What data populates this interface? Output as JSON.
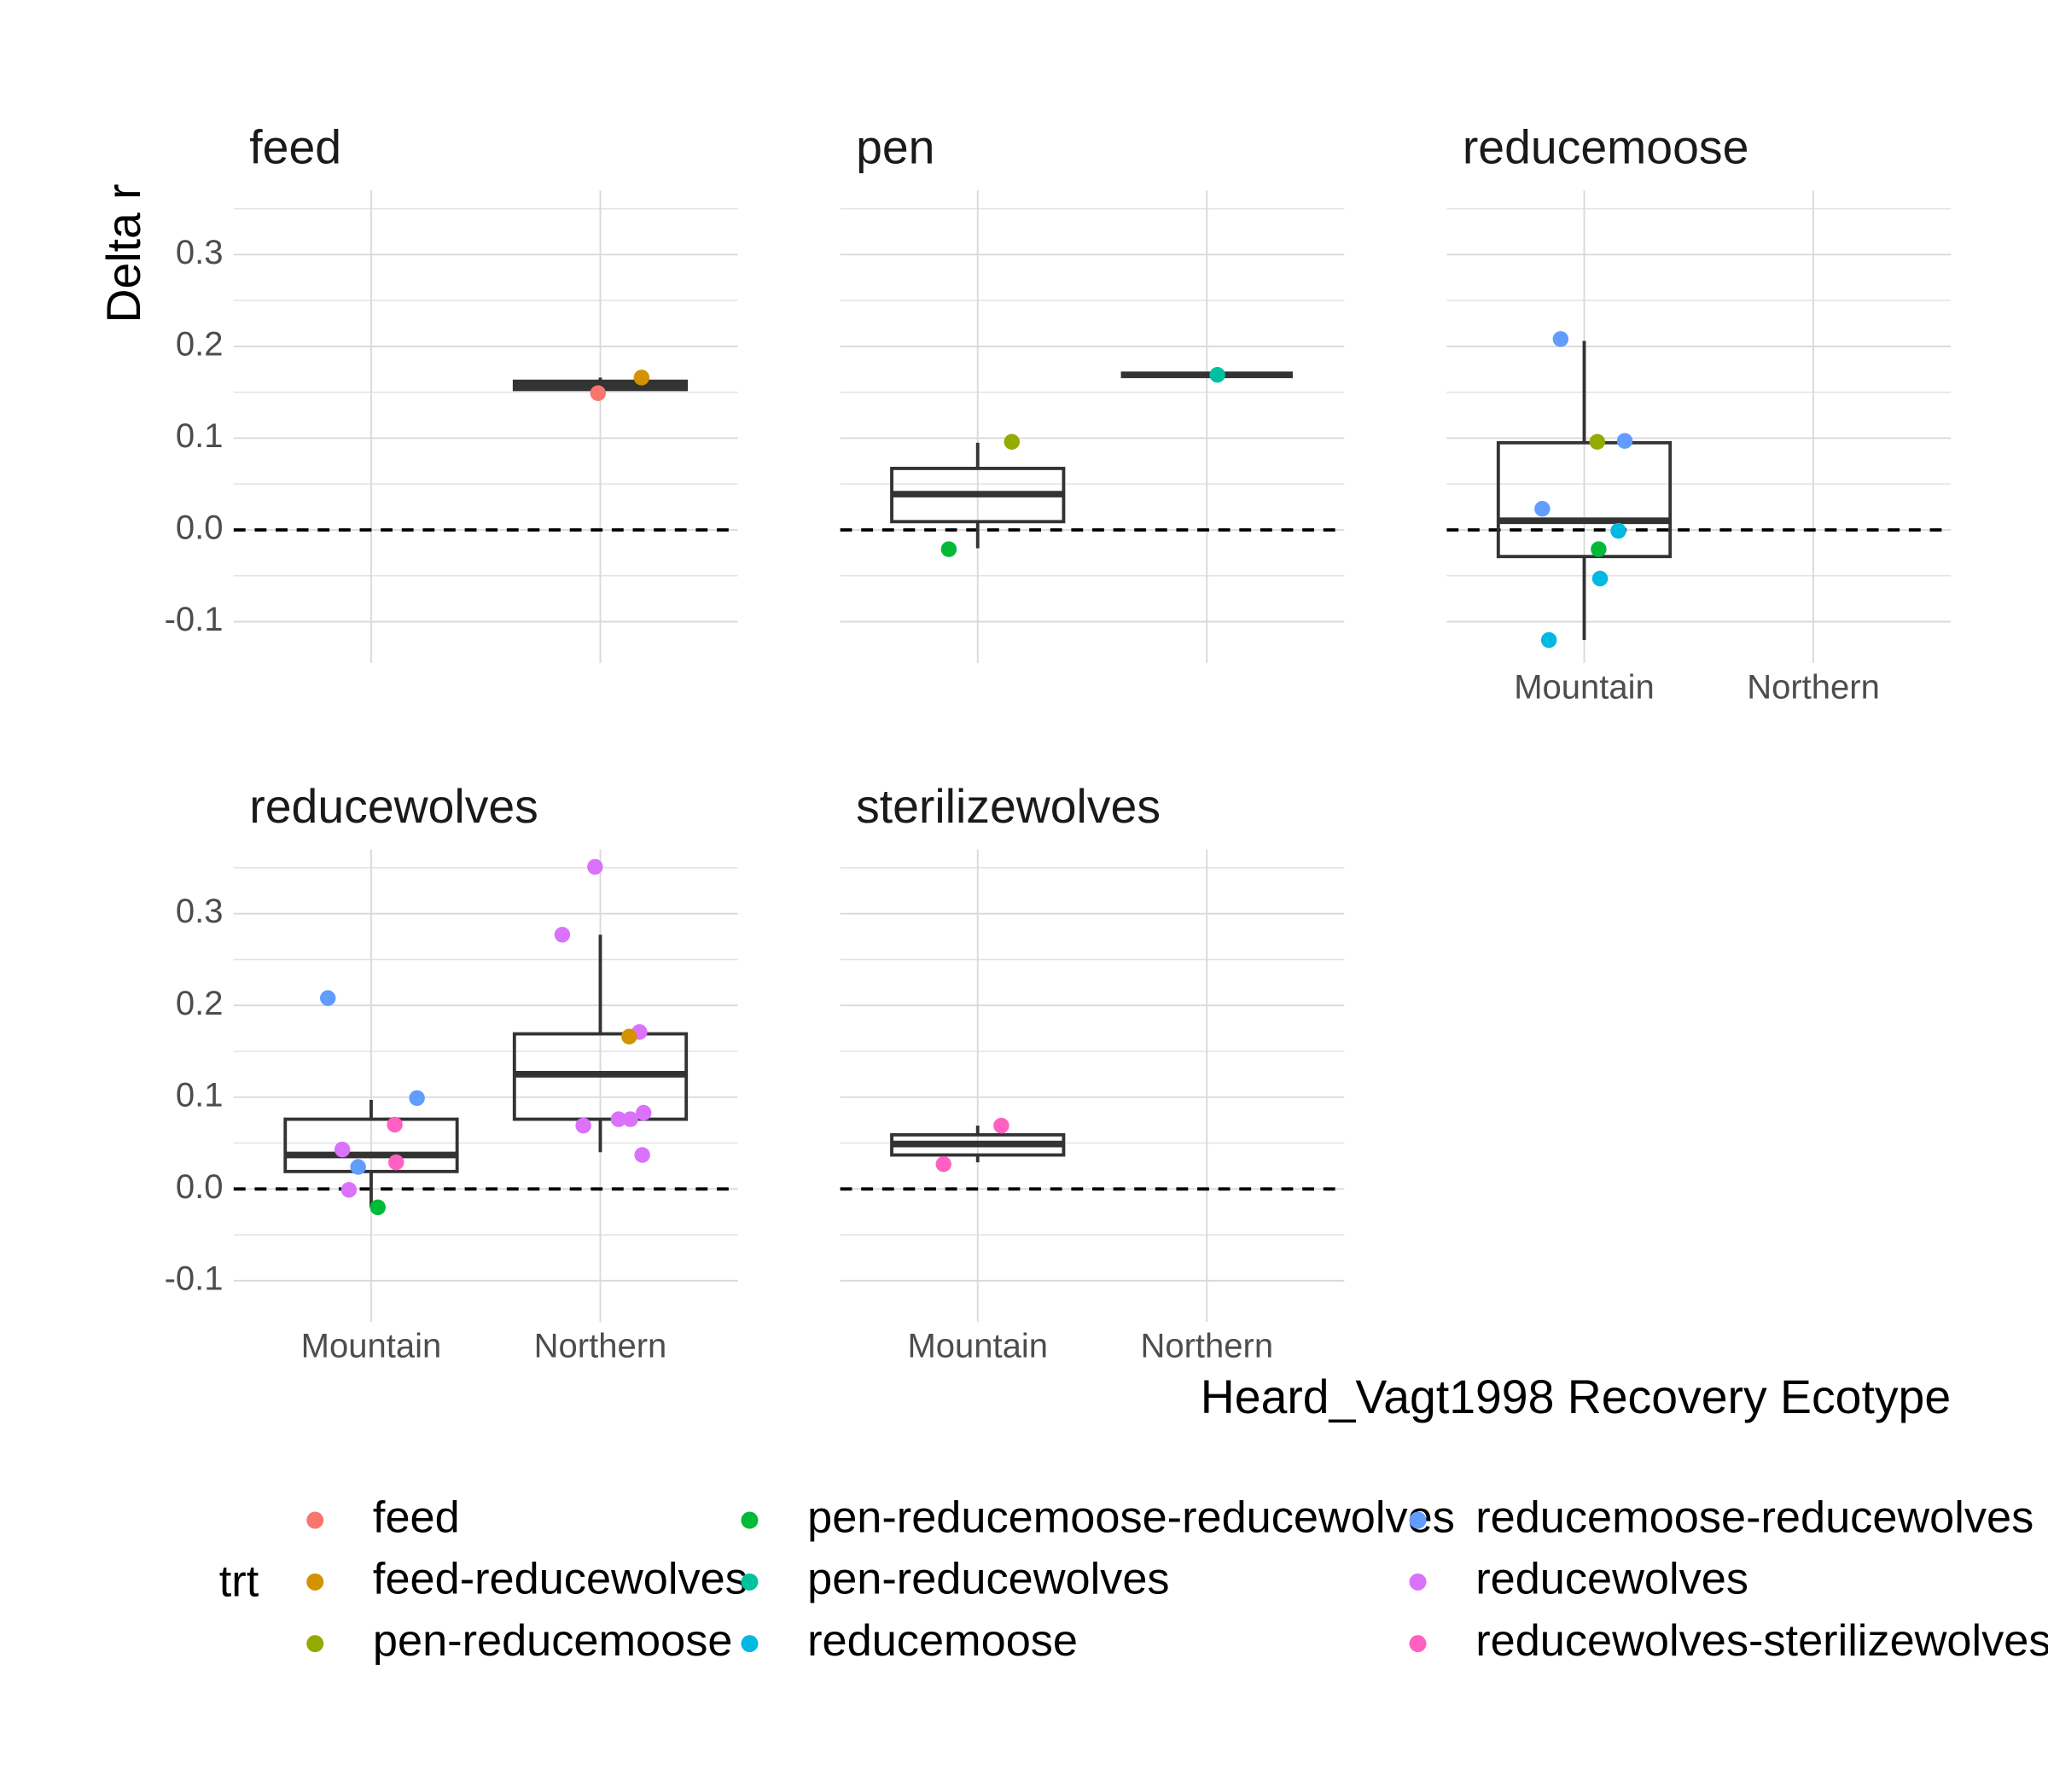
{
  "chart_data": {
    "type": "box",
    "y_label": "Delta r",
    "x_label": "Heard_Vagt1998 Recovery Ecotype",
    "categories": [
      "Mountain",
      "Northern"
    ],
    "xlim": [
      0.4,
      2.6
    ],
    "ylim": [
      -0.145,
      0.37
    ],
    "yticks": [
      -0.1,
      {
        "value": 0,
        "label": "0.0"
      },
      0.1,
      0.2,
      0.3
    ],
    "grid": true,
    "hline": 0,
    "legend_title": "trt",
    "legend_position": "bottom",
    "series": [
      {
        "name": "feed",
        "color": "#F8766D"
      },
      {
        "name": "feed-reducewolves",
        "color": "#D39200"
      },
      {
        "name": "pen-reducemoose",
        "color": "#93AA00"
      },
      {
        "name": "pen-reducemoose-reducewolves",
        "color": "#00BA38"
      },
      {
        "name": "pen-reducewolves",
        "color": "#00C19F"
      },
      {
        "name": "reducemoose",
        "color": "#00B9E3"
      },
      {
        "name": "reducemoose-reducewolves",
        "color": "#619CFF"
      },
      {
        "name": "reducewolves",
        "color": "#DB72FB"
      },
      {
        "name": "reducewolves-sterilizewolves",
        "color": "#FF61C3"
      }
    ],
    "facets": [
      {
        "title": "feed",
        "boxes": [
          {
            "category": "Northern",
            "lower": 0.149,
            "q1": 0.153,
            "median": 0.158,
            "q3": 0.162,
            "upper": 0.166
          }
        ],
        "points": [
          {
            "x": 1.99,
            "y": 0.149,
            "trt": "feed"
          },
          {
            "x": 2.18,
            "y": 0.166,
            "trt": "feed-reducewolves"
          }
        ]
      },
      {
        "title": "pen",
        "boxes": [
          {
            "category": "Mountain",
            "lower": -0.02,
            "q1": 0.009,
            "median": 0.039,
            "q3": 0.067,
            "upper": 0.095
          },
          {
            "category": "Northern",
            "lower": 0.169,
            "q1": 0.169,
            "median": 0.169,
            "q3": 0.169,
            "upper": 0.169
          }
        ],
        "points": [
          {
            "x": 0.874,
            "y": -0.021,
            "trt": "pen-reducemoose-reducewolves"
          },
          {
            "x": 1.149,
            "y": 0.096,
            "trt": "pen-reducemoose"
          },
          {
            "x": 2.046,
            "y": 0.169,
            "trt": "pen-reducewolves"
          }
        ]
      },
      {
        "title": "reducemoose",
        "boxes": [
          {
            "category": "Mountain",
            "lower": -0.12,
            "q1": -0.029,
            "median": 0.01,
            "q3": 0.095,
            "upper": 0.206
          }
        ],
        "points": [
          {
            "x": 0.897,
            "y": 0.208,
            "trt": "reducemoose-reducewolves"
          },
          {
            "x": 1.057,
            "y": 0.096,
            "trt": "pen-reducemoose"
          },
          {
            "x": 1.177,
            "y": 0.097,
            "trt": "reducemoose-reducewolves"
          },
          {
            "x": 0.817,
            "y": 0.023,
            "trt": "reducemoose-reducewolves"
          },
          {
            "x": 1.149,
            "y": -0.001,
            "trt": "reducemoose"
          },
          {
            "x": 1.063,
            "y": -0.021,
            "trt": "pen-reducemoose-reducewolves"
          },
          {
            "x": 1.069,
            "y": -0.053,
            "trt": "reducemoose"
          },
          {
            "x": 0.846,
            "y": -0.12,
            "trt": "reducemoose"
          }
        ]
      },
      {
        "title": "reducewolves",
        "boxes": [
          {
            "category": "Mountain",
            "lower": -0.02,
            "q1": 0.019,
            "median": 0.037,
            "q3": 0.076,
            "upper": 0.097
          },
          {
            "category": "Northern",
            "lower": 0.04,
            "q1": 0.076,
            "median": 0.125,
            "q3": 0.169,
            "upper": 0.277
          }
        ],
        "points": [
          {
            "x": 0.811,
            "y": 0.208,
            "trt": "reducemoose-reducewolves"
          },
          {
            "x": 1.2,
            "y": 0.099,
            "trt": "reducemoose-reducewolves"
          },
          {
            "x": 1.103,
            "y": 0.07,
            "trt": "reducewolves-sterilizewolves"
          },
          {
            "x": 0.874,
            "y": 0.043,
            "trt": "reducewolves"
          },
          {
            "x": 0.943,
            "y": 0.024,
            "trt": "reducemoose-reducewolves"
          },
          {
            "x": 1.109,
            "y": 0.029,
            "trt": "reducewolves-sterilizewolves"
          },
          {
            "x": 0.903,
            "y": -0.001,
            "trt": "reducewolves"
          },
          {
            "x": 1.029,
            "y": -0.02,
            "trt": "pen-reducemoose-reducewolves"
          },
          {
            "x": 1.977,
            "y": 0.351,
            "trt": "reducewolves"
          },
          {
            "x": 1.834,
            "y": 0.277,
            "trt": "reducewolves"
          },
          {
            "x": 2.171,
            "y": 0.171,
            "trt": "reducewolves"
          },
          {
            "x": 2.126,
            "y": 0.166,
            "trt": "feed-reducewolves"
          },
          {
            "x": 2.189,
            "y": 0.083,
            "trt": "reducewolves"
          },
          {
            "x": 2.08,
            "y": 0.076,
            "trt": "reducewolves"
          },
          {
            "x": 2.131,
            "y": 0.076,
            "trt": "reducewolves"
          },
          {
            "x": 1.926,
            "y": 0.069,
            "trt": "reducewolves"
          },
          {
            "x": 2.183,
            "y": 0.037,
            "trt": "reducewolves"
          }
        ]
      },
      {
        "title": "sterilizewolves",
        "boxes": [
          {
            "category": "Mountain",
            "lower": 0.029,
            "q1": 0.037,
            "median": 0.049,
            "q3": 0.059,
            "upper": 0.069
          }
        ],
        "points": [
          {
            "x": 1.103,
            "y": 0.069,
            "trt": "reducewolves-sterilizewolves"
          },
          {
            "x": 0.851,
            "y": 0.027,
            "trt": "reducewolves-sterilizewolves"
          }
        ]
      }
    ]
  }
}
